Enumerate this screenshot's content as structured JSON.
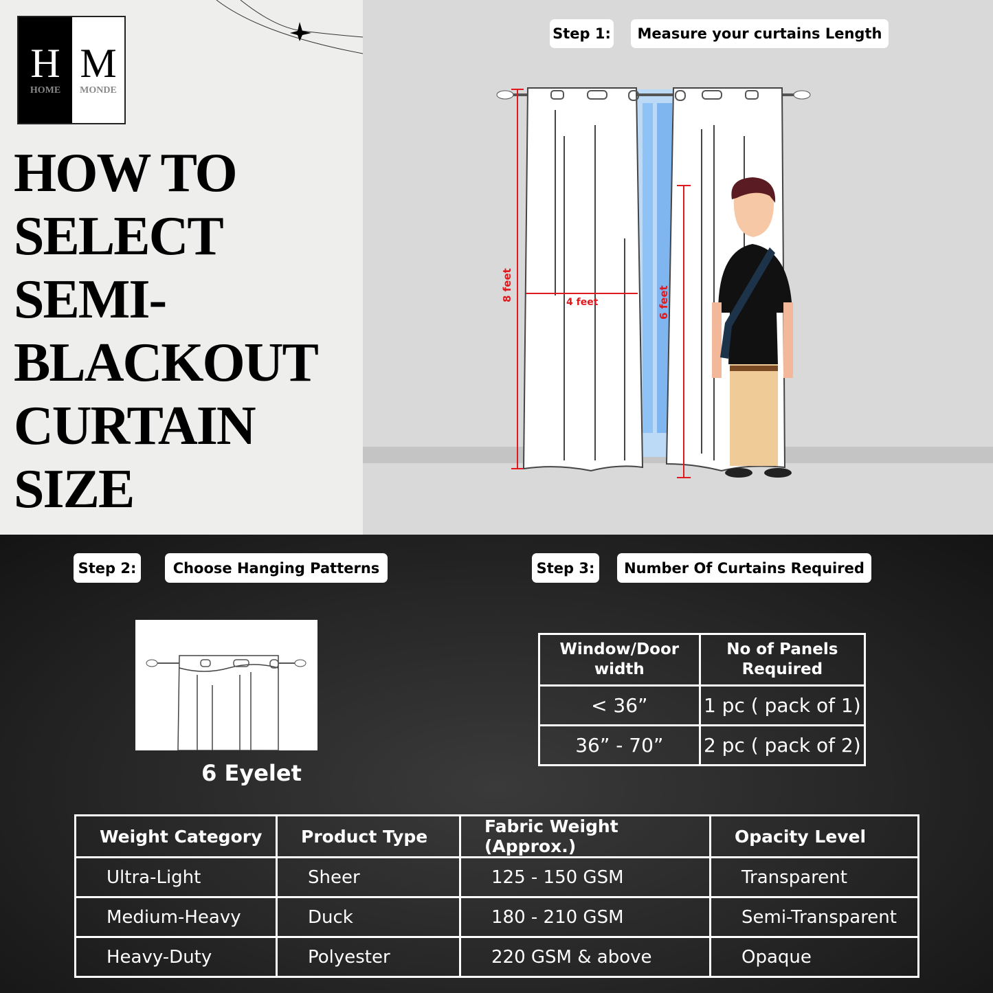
{
  "brand": {
    "logo_letters": "HM",
    "logo_left": "H",
    "logo_right": "M",
    "logo_word_left": "HOME",
    "logo_word_right": "MONDE"
  },
  "title_lines": [
    "HOW  TO",
    "SELECT",
    "SEMI-",
    "BLACKOUT",
    "CURTAIN",
    "SIZE"
  ],
  "step1": {
    "label": "Step 1:",
    "text": "Measure your curtains Length"
  },
  "illustration": {
    "height_label": "8 feet",
    "width_label": "4 feet",
    "person_label": "6 feet",
    "measure_color": "#e0191e"
  },
  "step2": {
    "label": "Step 2:",
    "text": "Choose Hanging Patterns",
    "pattern": "6 Eyelet"
  },
  "step3": {
    "label": "Step 3:",
    "text": "Number Of Curtains Required",
    "headers": [
      "Window/Door width",
      "No of Panels Required"
    ],
    "rows": [
      [
        "< 36”",
        "1 pc ( pack of 1)"
      ],
      [
        "36” - 70”",
        "2 pc ( pack of 2)"
      ]
    ]
  },
  "weight_table": {
    "headers": [
      "Weight Category",
      "Product Type",
      "Fabric Weight (Approx.)",
      "Opacity Level"
    ],
    "rows": [
      [
        "Ultra-Light",
        "Sheer",
        "125  -  150 GSM",
        "Transparent"
      ],
      [
        "Medium-Heavy",
        "Duck",
        "180  -  210 GSM",
        "Semi-Transparent"
      ],
      [
        "Heavy-Duty",
        "Polyester",
        "220  GSM & above",
        "Opaque"
      ]
    ]
  }
}
